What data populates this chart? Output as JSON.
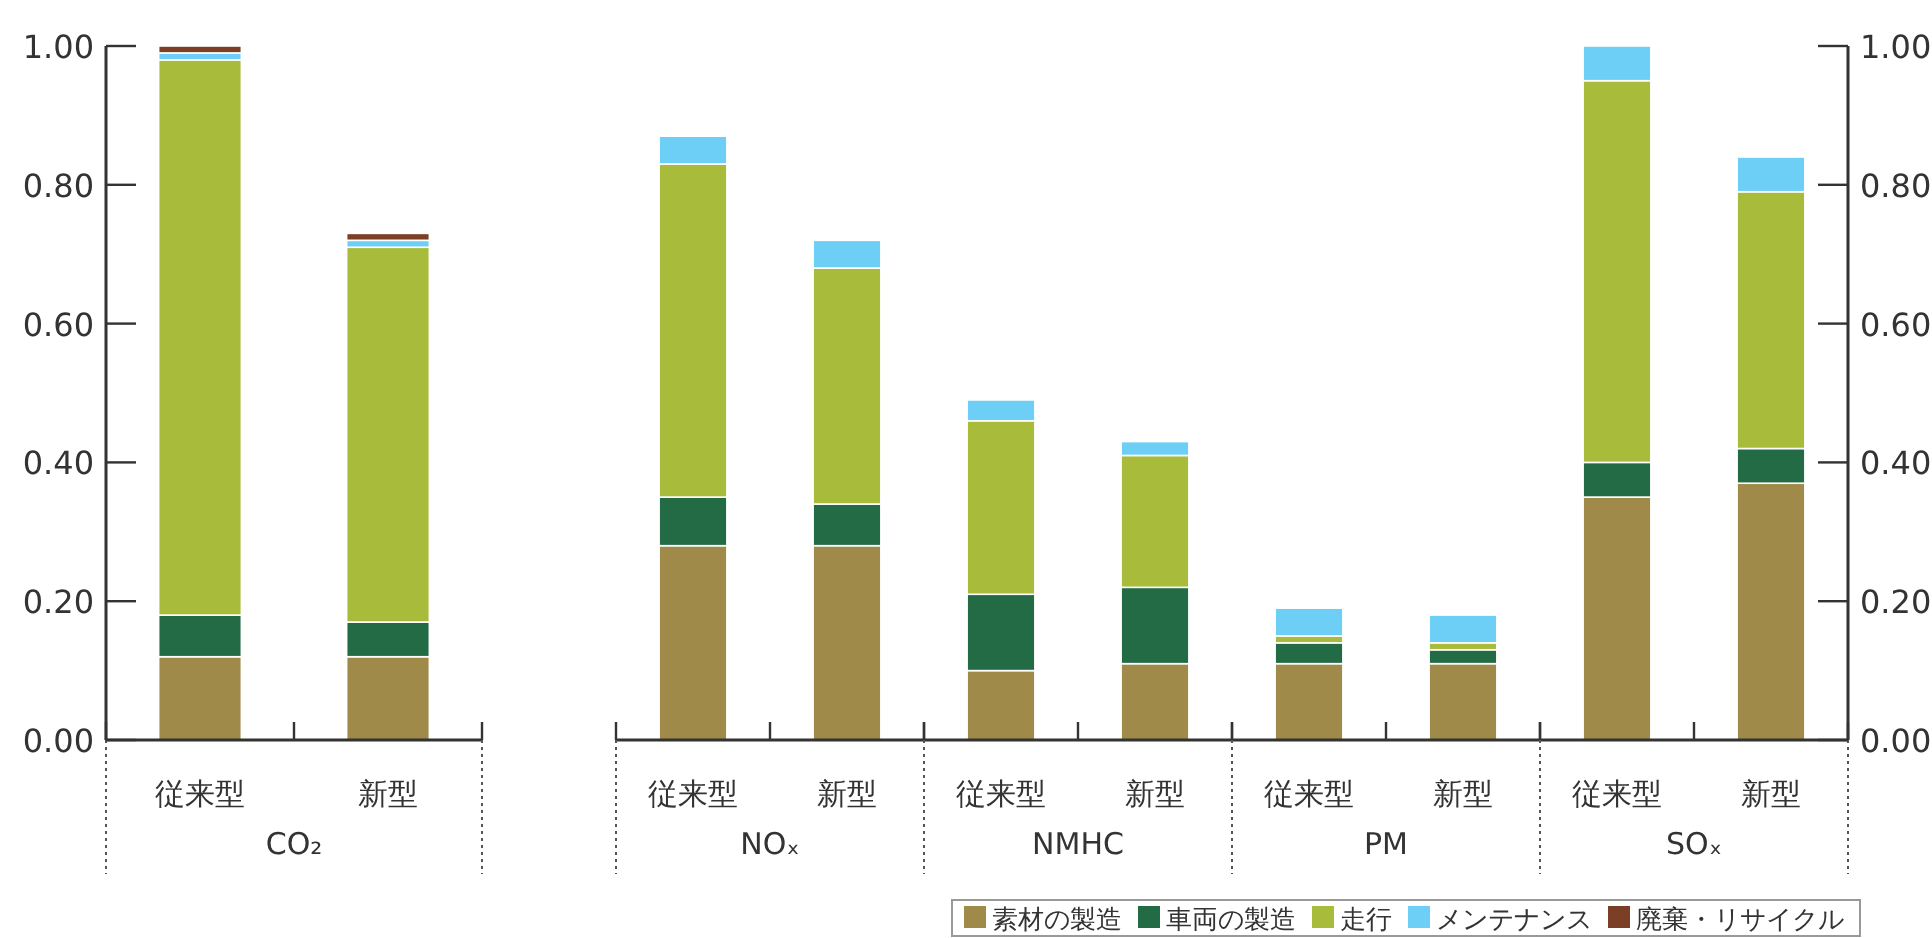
{
  "chart_data": [
    {
      "type": "bar",
      "stacked": true,
      "xlabel": "CO₂",
      "categories": [
        "従来型",
        "新型"
      ],
      "ylim": [
        0,
        1
      ],
      "yticks": [
        {
          "value": 0,
          "label": "0.00"
        },
        {
          "value": 0.2,
          "label": "0.20"
        },
        {
          "value": 0.4,
          "label": "0.40"
        },
        {
          "value": 0.6,
          "label": "0.60"
        },
        {
          "value": 0.8,
          "label": "0.80"
        },
        {
          "value": 1,
          "label": "1.00"
        }
      ],
      "series": [
        {
          "color": "#a08a4a",
          "values": [
            0.12,
            0.12
          ]
        },
        {
          "color": "#236b45",
          "values": [
            0.06,
            0.05
          ]
        },
        {
          "color": "#a8bb3a",
          "values": [
            0.8,
            0.54
          ]
        },
        {
          "color": "#6dcff6",
          "values": [
            0.01,
            0.01
          ]
        },
        {
          "color": "#7b3f26",
          "values": [
            0.01,
            0.01
          ]
        }
      ]
    },
    {
      "type": "bar",
      "stacked": true,
      "xlabel": "NOₓ",
      "categories": [
        "従来型",
        "新型"
      ],
      "ylim": [
        0,
        1
      ],
      "tick_labels": "x",
      "series": [
        {
          "color": "#a08a4a",
          "values": [
            0.28,
            0.28
          ]
        },
        {
          "color": "#236b45",
          "values": [
            0.07,
            0.06
          ]
        },
        {
          "color": "#a8bb3a",
          "values": [
            0.48,
            0.34
          ]
        },
        {
          "color": "#6dcff6",
          "values": [
            0.04,
            0.04
          ]
        }
      ]
    },
    {
      "type": "bar",
      "stacked": true,
      "xlabel": "NMHC",
      "categories": [
        "従来型",
        "新型"
      ],
      "ylim": [
        0,
        1
      ],
      "tick_labels": "x",
      "series": [
        {
          "color": "#a08a4a",
          "values": [
            0.1,
            0.11
          ]
        },
        {
          "color": "#236b45",
          "values": [
            0.11,
            0.11
          ]
        },
        {
          "color": "#a8bb3a",
          "values": [
            0.25,
            0.19
          ]
        },
        {
          "color": "#6dcff6",
          "values": [
            0.03,
            0.02
          ]
        }
      ]
    },
    {
      "type": "bar",
      "stacked": true,
      "xlabel": "PM",
      "categories": [
        "従来型",
        "新型"
      ],
      "ylim": [
        0,
        1
      ],
      "tick_labels": "x",
      "series": [
        {
          "color": "#a08a4a",
          "values": [
            0.11,
            0.11
          ]
        },
        {
          "color": "#236b45",
          "values": [
            0.03,
            0.02
          ]
        },
        {
          "color": "#a8bb3a",
          "values": [
            0.01,
            0.01
          ]
        },
        {
          "color": "#6dcff6",
          "values": [
            0.04,
            0.04
          ]
        }
      ]
    },
    {
      "type": "bar",
      "stacked": true,
      "xlabel": "SOₓ",
      "categories": [
        "従来型",
        "新型"
      ],
      "legend": "bottom left",
      "y2lim": [
        0,
        1
      ],
      "y2ticks": [
        {
          "value": 0,
          "label": "0.00"
        },
        {
          "value": 0.2,
          "label": "0.20"
        },
        {
          "value": 0.4,
          "label": "0.40"
        },
        {
          "value": 0.6,
          "label": "0.60"
        },
        {
          "value": 0.8,
          "label": "0.80"
        },
        {
          "value": 1,
          "label": "1.00"
        }
      ],
      "series": [
        {
          "name": "素材の製造",
          "color": "#a08a4a",
          "values": [
            0.35,
            0.37
          ],
          "axis": "y2"
        },
        {
          "name": "車両の製造",
          "color": "#236b45",
          "values": [
            0.05,
            0.05
          ],
          "axis": "y2"
        },
        {
          "name": "走行",
          "color": "#a8bb3a",
          "values": [
            0.55,
            0.37
          ],
          "axis": "y2"
        },
        {
          "name": "メンテナンス",
          "color": "#6dcff6",
          "values": [
            0.05,
            0.05
          ],
          "axis": "y2"
        },
        {
          "name": "廃棄・リサイクル",
          "color": "#7b3f26",
          "values": [
            null,
            null
          ],
          "axis": "y2"
        }
      ]
    }
  ]
}
